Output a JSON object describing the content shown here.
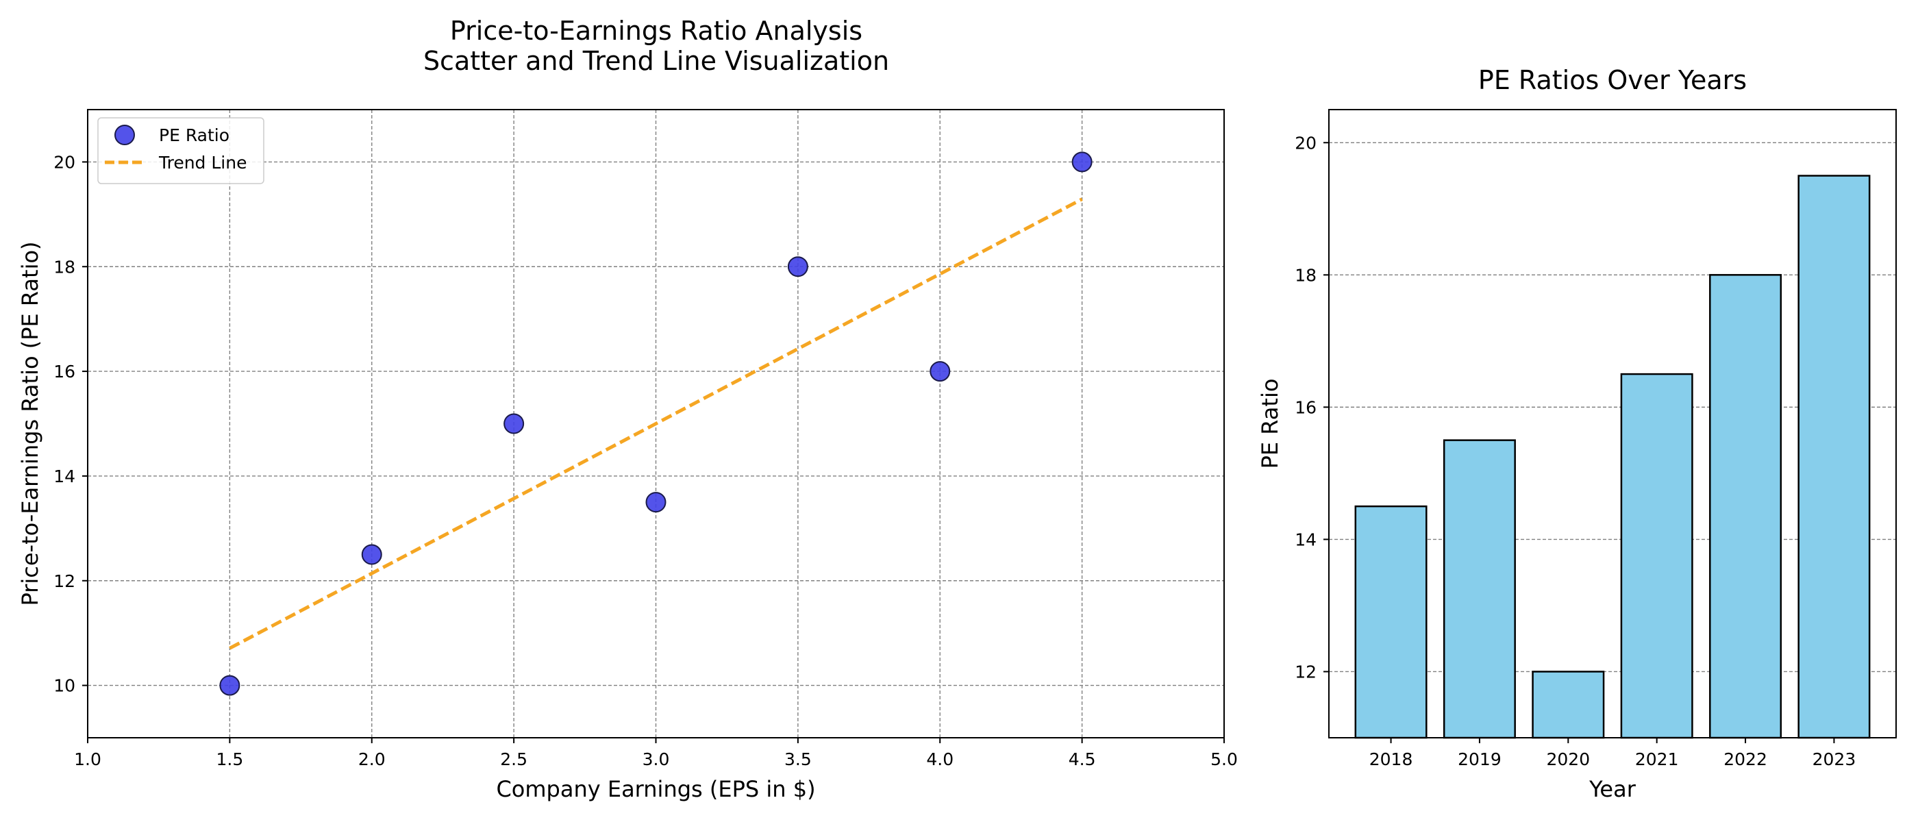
{
  "chart_data": [
    {
      "type": "scatter",
      "title": "Price-to-Earnings Ratio Analysis\nScatter and Trend Line Visualization",
      "xlabel": "Company Earnings (EPS in $)",
      "ylabel": "Price-to-Earnings Ratio (PE Ratio)",
      "xlim": [
        1.0,
        5.0
      ],
      "ylim": [
        9,
        21
      ],
      "xticks": [
        "1.0",
        "1.5",
        "2.0",
        "2.5",
        "3.0",
        "3.5",
        "4.0",
        "4.5",
        "5.0"
      ],
      "yticks": [
        "10",
        "12",
        "14",
        "16",
        "18",
        "20"
      ],
      "grid": true,
      "legend_position": "top-left",
      "series": [
        {
          "name": "PE Ratio",
          "kind": "scatter",
          "color": "#4040e8",
          "x": [
            1.5,
            2.0,
            2.5,
            3.0,
            3.5,
            4.0,
            4.5
          ],
          "y": [
            10,
            12.5,
            15,
            13.5,
            18,
            16,
            20
          ]
        },
        {
          "name": "Trend Line",
          "kind": "line",
          "style": "dashed",
          "color": "#f5a623",
          "x": [
            1.5,
            4.5
          ],
          "y": [
            10.71,
            19.29
          ]
        }
      ]
    },
    {
      "type": "bar",
      "title": "PE Ratios Over Years",
      "xlabel": "Year",
      "ylabel": "PE Ratio",
      "ylim": [
        11,
        20.5
      ],
      "yticks": [
        "12",
        "14",
        "16",
        "18",
        "20"
      ],
      "grid": true,
      "color": "#87ceeb",
      "categories": [
        "2018",
        "2019",
        "2020",
        "2021",
        "2022",
        "2023"
      ],
      "values": [
        14.5,
        15.5,
        12,
        16.5,
        18,
        19.5
      ]
    }
  ]
}
